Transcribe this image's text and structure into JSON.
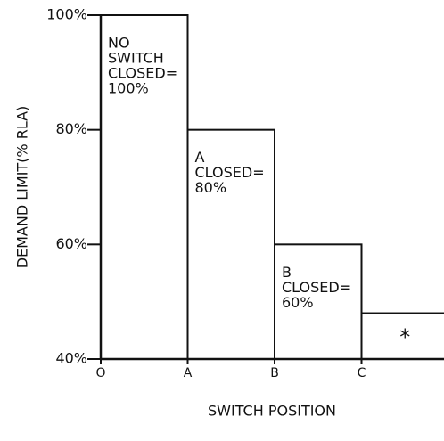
{
  "chart_data": {
    "type": "bar",
    "y_label": "DEMAND LIMIT(% RLA)",
    "x_label": "SWITCH POSITION",
    "categories": [
      "O",
      "A",
      "B",
      "C"
    ],
    "values": [
      100,
      80,
      60,
      48
    ],
    "color": "#ffffff",
    "annotations": [
      [
        "NO",
        "SWITCH",
        "CLOSED=",
        "100%"
      ],
      [
        "A",
        "CLOSED=",
        "80%"
      ],
      [
        "B",
        "CLOSED=",
        "60%"
      ],
      [
        "*"
      ]
    ],
    "ylim": [
      40,
      100
    ],
    "yticks": [
      {
        "value": 40,
        "label": "40%"
      },
      {
        "value": 60,
        "label": "60%"
      },
      {
        "value": 80,
        "label": "80%"
      },
      {
        "value": 100,
        "label": "100%"
      }
    ]
  }
}
